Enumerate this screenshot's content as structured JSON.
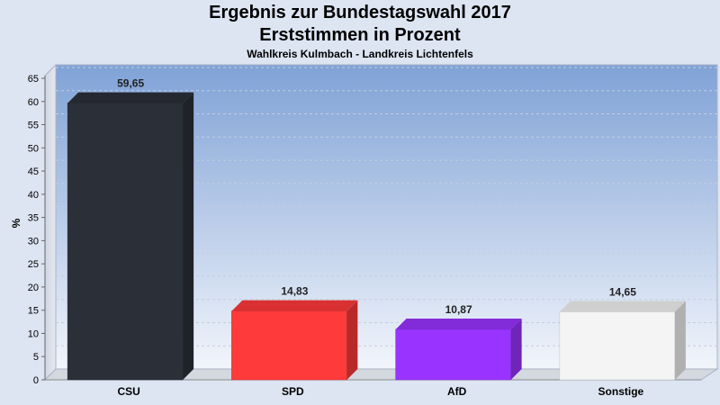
{
  "header": {
    "title_line1": "Ergebnis zur Bundestagswahl 2017",
    "title_line2": "Erststimmen in Prozent",
    "subtitle": "Wahlkreis Kulmbach - Landkreis Lichtenfels"
  },
  "chart_data": {
    "type": "bar",
    "title": "Ergebnis zur Bundestagswahl 2017 / Erststimmen in Prozent",
    "subtitle": "Wahlkreis Kulmbach - Landkreis Lichtenfels",
    "xlabel": "",
    "ylabel": "%",
    "ylim": [
      0,
      65
    ],
    "yticks": [
      0,
      5,
      10,
      15,
      20,
      25,
      30,
      35,
      40,
      45,
      50,
      55,
      60,
      65
    ],
    "categories": [
      "CSU",
      "SPD",
      "AfD",
      "Sonstige"
    ],
    "values": [
      59.65,
      14.83,
      10.87,
      14.65
    ],
    "value_labels": [
      "59,65",
      "14,83",
      "10,87",
      "14,65"
    ],
    "colors": [
      "#2b2f38",
      "#ff3a3a",
      "#9933ff",
      "#f4f4f4"
    ],
    "grid": true,
    "three_d": true
  }
}
